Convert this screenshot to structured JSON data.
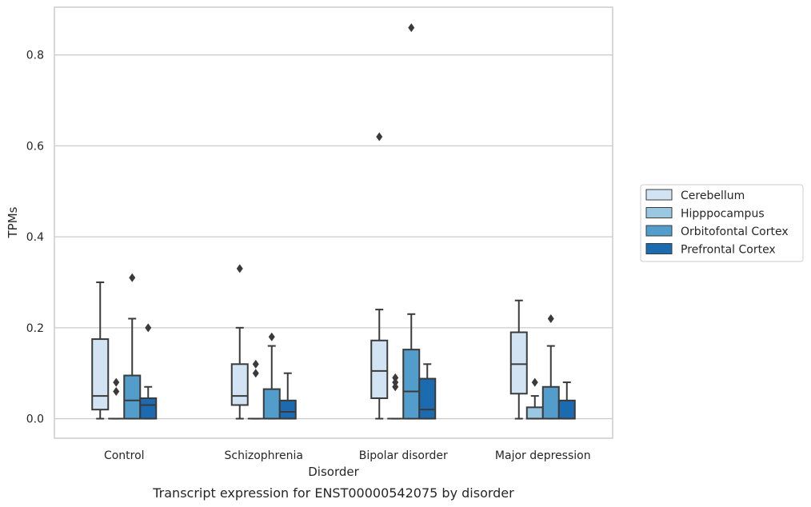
{
  "chart_data": {
    "type": "box",
    "xlabel": "Disorder",
    "ylabel": "TPMs",
    "caption": "Transcript expression for ENST00000542075 by disorder",
    "ylim": [
      -0.043,
      0.905
    ],
    "yticks": [
      0.0,
      0.2,
      0.4,
      0.6,
      0.8
    ],
    "ytick_labels": [
      "0.0",
      "0.2",
      "0.4",
      "0.6",
      "0.8"
    ],
    "grid": "horizontal",
    "legend_position": "right",
    "categories": [
      "Control",
      "Schizophrenia",
      "Bipolar disorder",
      "Major depression"
    ],
    "series": [
      {
        "name": "Cerebellum",
        "color": "#d2e3f3",
        "boxes": [
          {
            "q1": 0.02,
            "median": 0.05,
            "q3": 0.175,
            "whisker_low": 0.0,
            "whisker_high": 0.3,
            "outliers": []
          },
          {
            "q1": 0.03,
            "median": 0.05,
            "q3": 0.12,
            "whisker_low": 0.0,
            "whisker_high": 0.2,
            "outliers": [
              0.33
            ]
          },
          {
            "q1": 0.045,
            "median": 0.105,
            "q3": 0.172,
            "whisker_low": 0.0,
            "whisker_high": 0.24,
            "outliers": [
              0.62
            ]
          },
          {
            "q1": 0.055,
            "median": 0.12,
            "q3": 0.19,
            "whisker_low": 0.0,
            "whisker_high": 0.26,
            "outliers": []
          }
        ]
      },
      {
        "name": "Hipppocampus",
        "color": "#9ac8e0",
        "boxes": [
          {
            "q1": 0.0,
            "median": 0.0,
            "q3": 0.0,
            "whisker_low": 0.0,
            "whisker_high": 0.0,
            "outliers": [
              0.06,
              0.08
            ]
          },
          {
            "q1": 0.0,
            "median": 0.0,
            "q3": 0.0,
            "whisker_low": 0.0,
            "whisker_high": 0.0,
            "outliers": [
              0.1,
              0.12
            ]
          },
          {
            "q1": 0.0,
            "median": 0.0,
            "q3": 0.0,
            "whisker_low": 0.0,
            "whisker_high": 0.0,
            "outliers": [
              0.07,
              0.08,
              0.09
            ]
          },
          {
            "q1": 0.0,
            "median": 0.0,
            "q3": 0.025,
            "whisker_low": 0.0,
            "whisker_high": 0.05,
            "outliers": [
              0.08
            ]
          }
        ]
      },
      {
        "name": "Orbitofontal Cortex",
        "color": "#529dcc",
        "boxes": [
          {
            "q1": 0.0,
            "median": 0.04,
            "q3": 0.095,
            "whisker_low": 0.0,
            "whisker_high": 0.22,
            "outliers": [
              0.31
            ]
          },
          {
            "q1": 0.0,
            "median": 0.0,
            "q3": 0.065,
            "whisker_low": 0.0,
            "whisker_high": 0.16,
            "outliers": [
              0.18
            ]
          },
          {
            "q1": 0.0,
            "median": 0.06,
            "q3": 0.152,
            "whisker_low": 0.0,
            "whisker_high": 0.23,
            "outliers": [
              0.86
            ]
          },
          {
            "q1": 0.0,
            "median": 0.0,
            "q3": 0.07,
            "whisker_low": 0.0,
            "whisker_high": 0.16,
            "outliers": [
              0.22
            ]
          }
        ]
      },
      {
        "name": "Prefrontal Cortex",
        "color": "#1c6aaf",
        "boxes": [
          {
            "q1": 0.0,
            "median": 0.03,
            "q3": 0.045,
            "whisker_low": 0.0,
            "whisker_high": 0.07,
            "outliers": [
              0.2
            ]
          },
          {
            "q1": 0.0,
            "median": 0.015,
            "q3": 0.04,
            "whisker_low": 0.0,
            "whisker_high": 0.1,
            "outliers": []
          },
          {
            "q1": 0.0,
            "median": 0.02,
            "q3": 0.088,
            "whisker_low": 0.0,
            "whisker_high": 0.12,
            "outliers": []
          },
          {
            "q1": 0.0,
            "median": 0.0,
            "q3": 0.04,
            "whisker_low": 0.0,
            "whisker_high": 0.08,
            "outliers": []
          }
        ]
      }
    ]
  }
}
